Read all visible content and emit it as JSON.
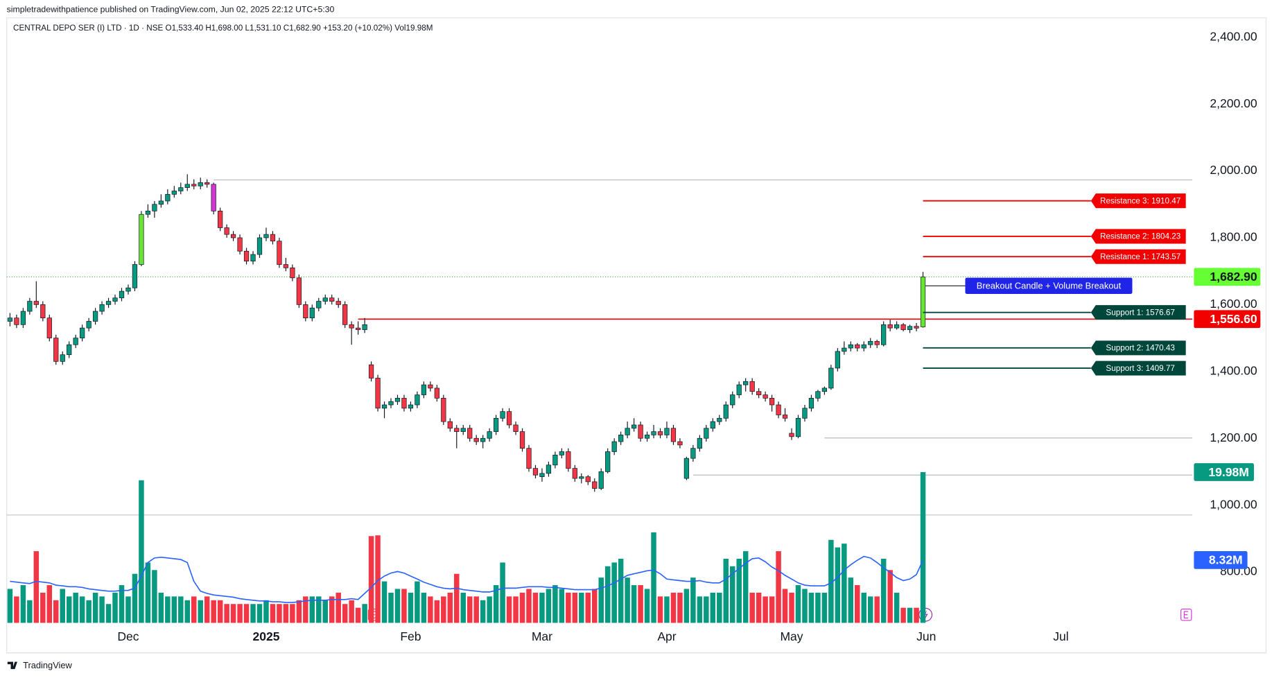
{
  "chart_data": {
    "type": "candlestick",
    "attribution": "simpletradewithpatience published on TradingView.com, Jun 02, 2025 22:12 UTC+5:30",
    "title": "CENTRAL DEPO SER (I) LTD · 1D · NSE  O1,533.40  H1,698.00  L1,531.10  C1,682.90  +153.20 (+10.02%)  Vol19.98M",
    "footer": "TradingView",
    "up_color": "#089981",
    "down_color": "#f23645",
    "ma_color": "#2962ff",
    "highlights": [
      {
        "index": 20,
        "color": "#66e633"
      },
      {
        "index": 31,
        "color": "#d633d6"
      },
      {
        "index": 139,
        "color": "#66e633"
      }
    ],
    "xlim": [
      -0.5,
      180
    ],
    "xticks": [
      {
        "value": 18,
        "label": "Dec"
      },
      {
        "value": 39,
        "label": "2025",
        "bold": true
      },
      {
        "value": 61,
        "label": "Feb"
      },
      {
        "value": 81,
        "label": "Mar"
      },
      {
        "value": 100,
        "label": "Apr"
      },
      {
        "value": 119,
        "label": "May"
      },
      {
        "value": 139.5,
        "label": "Jun"
      },
      {
        "value": 160,
        "label": "Jul"
      }
    ],
    "ylim": [
      558,
      2458
    ],
    "yticks": [
      {
        "value": 800,
        "label": "800.00"
      },
      {
        "value": 1000,
        "label": "1,000.00"
      },
      {
        "value": 1200,
        "label": "1,200.00"
      },
      {
        "value": 1400,
        "label": "1,400.00"
      },
      {
        "value": 1600,
        "label": "1,600.00"
      },
      {
        "value": 1800,
        "label": "1,800.00"
      },
      {
        "value": 2000,
        "label": "2,000.00"
      },
      {
        "value": 2200,
        "label": "2,200.00"
      },
      {
        "value": 2400,
        "label": "2,400.00"
      }
    ],
    "volume_ylim": [
      0,
      80.2
    ],
    "ohlc": [
      [
        1550,
        1575,
        1535,
        1560
      ],
      [
        1560,
        1570,
        1530,
        1540
      ],
      [
        1540,
        1590,
        1530,
        1580
      ],
      [
        1580,
        1620,
        1570,
        1610
      ],
      [
        1610,
        1670,
        1590,
        1600
      ],
      [
        1600,
        1610,
        1550,
        1560
      ],
      [
        1560,
        1570,
        1490,
        1500
      ],
      [
        1500,
        1510,
        1420,
        1430
      ],
      [
        1430,
        1460,
        1420,
        1450
      ],
      [
        1450,
        1490,
        1440,
        1480
      ],
      [
        1480,
        1510,
        1470,
        1500
      ],
      [
        1500,
        1540,
        1490,
        1530
      ],
      [
        1530,
        1560,
        1520,
        1550
      ],
      [
        1550,
        1590,
        1540,
        1580
      ],
      [
        1580,
        1610,
        1570,
        1600
      ],
      [
        1600,
        1620,
        1590,
        1610
      ],
      [
        1610,
        1630,
        1600,
        1620
      ],
      [
        1620,
        1650,
        1610,
        1640
      ],
      [
        1640,
        1660,
        1630,
        1650
      ],
      [
        1650,
        1730,
        1640,
        1720
      ],
      [
        1720,
        1880,
        1715,
        1870
      ],
      [
        1870,
        1900,
        1860,
        1880
      ],
      [
        1880,
        1910,
        1860,
        1900
      ],
      [
        1900,
        1930,
        1890,
        1910
      ],
      [
        1910,
        1945,
        1900,
        1930
      ],
      [
        1930,
        1955,
        1920,
        1940
      ],
      [
        1940,
        1965,
        1930,
        1950
      ],
      [
        1950,
        1990,
        1940,
        1960
      ],
      [
        1960,
        1975,
        1945,
        1955
      ],
      [
        1955,
        1980,
        1945,
        1965
      ],
      [
        1965,
        1975,
        1950,
        1960
      ],
      [
        1960,
        1965,
        1870,
        1880
      ],
      [
        1880,
        1890,
        1820,
        1830
      ],
      [
        1830,
        1840,
        1800,
        1810
      ],
      [
        1810,
        1820,
        1790,
        1800
      ],
      [
        1800,
        1810,
        1750,
        1760
      ],
      [
        1760,
        1770,
        1720,
        1730
      ],
      [
        1730,
        1760,
        1720,
        1750
      ],
      [
        1750,
        1810,
        1740,
        1800
      ],
      [
        1800,
        1830,
        1790,
        1810
      ],
      [
        1810,
        1820,
        1780,
        1790
      ],
      [
        1790,
        1800,
        1710,
        1720
      ],
      [
        1720,
        1740,
        1700,
        1710
      ],
      [
        1710,
        1720,
        1670,
        1680
      ],
      [
        1680,
        1690,
        1590,
        1600
      ],
      [
        1600,
        1610,
        1550,
        1560
      ],
      [
        1560,
        1600,
        1550,
        1590
      ],
      [
        1590,
        1620,
        1580,
        1610
      ],
      [
        1610,
        1630,
        1600,
        1620
      ],
      [
        1620,
        1630,
        1600,
        1610
      ],
      [
        1610,
        1620,
        1590,
        1600
      ],
      [
        1600,
        1610,
        1530,
        1540
      ],
      [
        1540,
        1550,
        1480,
        1530
      ],
      [
        1530,
        1550,
        1510,
        1525
      ],
      [
        1525,
        1560,
        1515,
        1540
      ],
      [
        1420,
        1430,
        1370,
        1380
      ],
      [
        1380,
        1390,
        1280,
        1290
      ],
      [
        1290,
        1310,
        1260,
        1300
      ],
      [
        1300,
        1320,
        1290,
        1310
      ],
      [
        1310,
        1330,
        1300,
        1320
      ],
      [
        1320,
        1330,
        1280,
        1290
      ],
      [
        1290,
        1310,
        1280,
        1300
      ],
      [
        1300,
        1340,
        1290,
        1330
      ],
      [
        1330,
        1370,
        1320,
        1360
      ],
      [
        1360,
        1370,
        1340,
        1350
      ],
      [
        1350,
        1360,
        1310,
        1320
      ],
      [
        1320,
        1330,
        1240,
        1250
      ],
      [
        1250,
        1260,
        1220,
        1230
      ],
      [
        1230,
        1240,
        1170,
        1220
      ],
      [
        1220,
        1240,
        1210,
        1230
      ],
      [
        1230,
        1240,
        1190,
        1200
      ],
      [
        1200,
        1210,
        1180,
        1190
      ],
      [
        1190,
        1210,
        1170,
        1200
      ],
      [
        1200,
        1230,
        1190,
        1220
      ],
      [
        1220,
        1270,
        1210,
        1260
      ],
      [
        1260,
        1290,
        1250,
        1280
      ],
      [
        1280,
        1290,
        1230,
        1240
      ],
      [
        1240,
        1250,
        1210,
        1220
      ],
      [
        1220,
        1230,
        1160,
        1170
      ],
      [
        1170,
        1180,
        1100,
        1110
      ],
      [
        1110,
        1120,
        1080,
        1090
      ],
      [
        1085,
        1110,
        1070,
        1095
      ],
      [
        1095,
        1130,
        1085,
        1120
      ],
      [
        1120,
        1160,
        1110,
        1150
      ],
      [
        1150,
        1170,
        1140,
        1160
      ],
      [
        1160,
        1170,
        1100,
        1110
      ],
      [
        1110,
        1120,
        1070,
        1080
      ],
      [
        1080,
        1095,
        1065,
        1085
      ],
      [
        1085,
        1090,
        1060,
        1070
      ],
      [
        1070,
        1080,
        1040,
        1050
      ],
      [
        1050,
        1110,
        1045,
        1100
      ],
      [
        1100,
        1170,
        1095,
        1160
      ],
      [
        1160,
        1200,
        1150,
        1190
      ],
      [
        1190,
        1220,
        1180,
        1210
      ],
      [
        1210,
        1250,
        1200,
        1230
      ],
      [
        1230,
        1260,
        1220,
        1240
      ],
      [
        1240,
        1250,
        1190,
        1200
      ],
      [
        1200,
        1220,
        1190,
        1210
      ],
      [
        1210,
        1240,
        1200,
        1220
      ],
      [
        1220,
        1230,
        1200,
        1210
      ],
      [
        1210,
        1250,
        1200,
        1230
      ],
      [
        1230,
        1240,
        1180,
        1190
      ],
      [
        1190,
        1200,
        1170,
        1180
      ],
      [
        1080,
        1145,
        1075,
        1140
      ],
      [
        1140,
        1180,
        1130,
        1170
      ],
      [
        1170,
        1210,
        1160,
        1200
      ],
      [
        1200,
        1240,
        1190,
        1230
      ],
      [
        1230,
        1260,
        1220,
        1250
      ],
      [
        1250,
        1270,
        1240,
        1260
      ],
      [
        1260,
        1310,
        1250,
        1300
      ],
      [
        1300,
        1340,
        1290,
        1330
      ],
      [
        1330,
        1370,
        1320,
        1360
      ],
      [
        1360,
        1380,
        1340,
        1370
      ],
      [
        1370,
        1380,
        1330,
        1340
      ],
      [
        1340,
        1350,
        1320,
        1330
      ],
      [
        1330,
        1340,
        1310,
        1320
      ],
      [
        1320,
        1330,
        1280,
        1300
      ],
      [
        1300,
        1310,
        1260,
        1270
      ],
      [
        1270,
        1290,
        1250,
        1260
      ],
      [
        1215,
        1230,
        1195,
        1205
      ],
      [
        1205,
        1270,
        1200,
        1260
      ],
      [
        1260,
        1300,
        1250,
        1290
      ],
      [
        1290,
        1330,
        1280,
        1320
      ],
      [
        1320,
        1345,
        1310,
        1340
      ],
      [
        1340,
        1355,
        1330,
        1350
      ],
      [
        1350,
        1420,
        1345,
        1410
      ],
      [
        1410,
        1470,
        1400,
        1460
      ],
      [
        1460,
        1490,
        1450,
        1470
      ],
      [
        1470,
        1490,
        1460,
        1480
      ],
      [
        1480,
        1485,
        1460,
        1470
      ],
      [
        1470,
        1490,
        1460,
        1480
      ],
      [
        1480,
        1500,
        1470,
        1490
      ],
      [
        1490,
        1495,
        1470,
        1480
      ],
      [
        1480,
        1550,
        1475,
        1540
      ],
      [
        1540,
        1555,
        1520,
        1530
      ],
      [
        1530,
        1550,
        1525,
        1540
      ],
      [
        1540,
        1545,
        1520,
        1525
      ],
      [
        1525,
        1540,
        1515,
        1535
      ],
      [
        1535,
        1545,
        1520,
        1529.7
      ],
      [
        1533.4,
        1698,
        1531.1,
        1682.9
      ]
    ],
    "volume": [
      4.5,
      3.5,
      5,
      3,
      9.5,
      4,
      5,
      3,
      4.5,
      3.5,
      4,
      3.5,
      3,
      4,
      3.5,
      2.5,
      4,
      5,
      3.5,
      6.5,
      18.9,
      8,
      7,
      4,
      3.5,
      3.5,
      3.5,
      3,
      3.5,
      3,
      3.5,
      3,
      3,
      2.5,
      2.5,
      2.5,
      2.5,
      2.5,
      2.5,
      3,
      2.5,
      2.5,
      2.5,
      2.5,
      3,
      3.5,
      3.5,
      3.5,
      3,
      3.5,
      4,
      2.5,
      3,
      2,
      2.5,
      11.5,
      11.6,
      5.5,
      4,
      4.5,
      4.5,
      4,
      5.5,
      4,
      3.5,
      3,
      3.5,
      4,
      6.5,
      4,
      3.5,
      3.5,
      3,
      3.5,
      5,
      8,
      3.5,
      3.5,
      4,
      4.5,
      4,
      4,
      4.5,
      5,
      4.5,
      4,
      4,
      4,
      4,
      4.5,
      6,
      7.5,
      8,
      8.5,
      6,
      5,
      5,
      4.5,
      12,
      3.5,
      3.5,
      4,
      4,
      4.5,
      6,
      3.5,
      3.5,
      4,
      4,
      8.5,
      7.5,
      8.5,
      9.5,
      4,
      4,
      3.5,
      3.5,
      9.5,
      4.5,
      4,
      5,
      4.5,
      4,
      4,
      4,
      11,
      10,
      10.5,
      6,
      5,
      4,
      3.5,
      3.5,
      8.5,
      7,
      4,
      2,
      2,
      2,
      19.98
    ],
    "volume_ma": [
      5.5,
      5.4,
      5.3,
      5.2,
      5.5,
      5.4,
      5.3,
      5.0,
      4.9,
      4.8,
      4.8,
      4.7,
      4.5,
      4.4,
      4.3,
      4.2,
      4.2,
      4.3,
      4.3,
      4.6,
      6.2,
      8.0,
      8.6,
      8.7,
      8.6,
      8.5,
      8.4,
      8.0,
      5.5,
      4.2,
      3.9,
      3.7,
      3.6,
      3.5,
      3.4,
      3.2,
      3.1,
      3.0,
      2.9,
      2.9,
      2.8,
      2.8,
      2.7,
      2.7,
      2.8,
      2.9,
      3.0,
      3.0,
      3.0,
      3.1,
      3.1,
      3.1,
      3.2,
      3.1,
      3.9,
      4.7,
      5.6,
      6.2,
      6.6,
      6.8,
      6.6,
      6.2,
      5.8,
      5.4,
      5.1,
      4.8,
      4.6,
      4.5,
      4.6,
      4.4,
      4.3,
      4.2,
      4.1,
      4.1,
      4.3,
      4.6,
      4.6,
      4.6,
      4.7,
      4.8,
      4.8,
      4.8,
      4.7,
      4.7,
      4.6,
      4.5,
      4.4,
      4.4,
      4.4,
      4.4,
      4.6,
      4.9,
      5.3,
      5.8,
      6.3,
      6.5,
      6.7,
      6.9,
      7.0,
      6.5,
      5.8,
      5.7,
      5.6,
      5.5,
      5.5,
      5.6,
      5.4,
      5.3,
      5.3,
      5.8,
      6.5,
      7.2,
      7.9,
      8.5,
      8.6,
      8.1,
      7.4,
      6.9,
      6.3,
      5.8,
      5.3,
      5.0,
      4.9,
      4.9,
      4.9,
      5.3,
      6.0,
      7.0,
      7.7,
      8.3,
      8.8,
      8.6,
      8.0,
      7.3,
      6.7,
      6.0,
      5.6,
      5.8,
      6.4,
      8.32
    ],
    "last_price": {
      "value": 1682.9,
      "label": "1,682.90",
      "color": "#66ff33"
    },
    "price_line": {
      "value": 1556.6,
      "label": "1,556.60",
      "color": "#f20000",
      "start": 53
    },
    "volume_label": {
      "value": 19.98,
      "label": "19.98M"
    },
    "ma_label": {
      "value": 8.32,
      "label": "8.32M"
    },
    "gray_levels": [
      {
        "value": 1973,
        "start": 31
      },
      {
        "value": 1201,
        "start": 124
      },
      {
        "value": 1090,
        "start": 104
      }
    ],
    "levels": [
      {
        "label": "Resistance 3: 1910.47",
        "value": 1910.47,
        "color": "#f20000"
      },
      {
        "label": "Resistance 2: 1804.23",
        "value": 1804.23,
        "color": "#f20000"
      },
      {
        "label": "Resistance 1: 1743.57",
        "value": 1743.57,
        "color": "#f20000"
      },
      {
        "label": "Support 1: 1576.67",
        "value": 1576.67,
        "color": "#00473b"
      },
      {
        "label": "Support 2: 1470.43",
        "value": 1470.43,
        "color": "#00473b"
      },
      {
        "label": "Support 3: 1409.77",
        "value": 1409.77,
        "color": "#00473b"
      }
    ],
    "annotation": {
      "text": "Breakout Candle + Volume Breakout",
      "color": "#1f24e6"
    }
  }
}
